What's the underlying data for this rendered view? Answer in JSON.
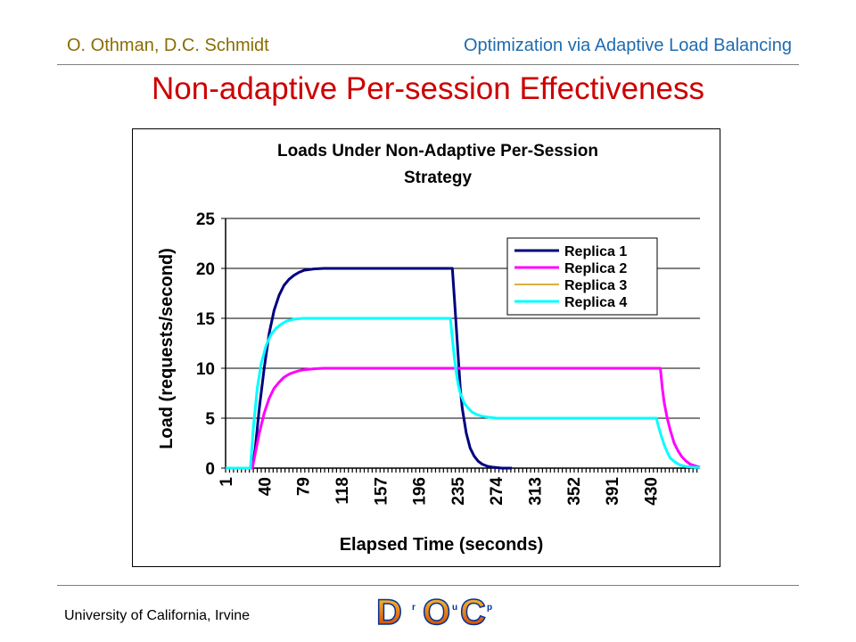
{
  "header": {
    "authors": "O. Othman, D.C. Schmidt",
    "topic": "Optimization via Adaptive Load Balancing"
  },
  "slide_title": "Non-adaptive Per-session Effectiveness",
  "footer": {
    "affiliation": "University of California, Irvine",
    "logo_letters": [
      "D",
      "r",
      "O",
      "u",
      "C",
      "p"
    ]
  },
  "colors": {
    "header_author": "#8a6d00",
    "header_topic": "#1f6bb0",
    "title": "#cc0000",
    "replica1": "#000080",
    "replica2": "#ff00ff",
    "replica3": "#cc9900",
    "replica4": "#00ffff"
  },
  "chart_data": {
    "type": "line",
    "title_lines": [
      "Loads Under Non-Adaptive Per-Session",
      "Strategy"
    ],
    "xlabel": "Elapsed Time (seconds)",
    "ylabel": "Load (requests/second)",
    "ylim": [
      0,
      25
    ],
    "yticks": [
      0,
      5,
      10,
      15,
      20,
      25
    ],
    "xlim": [
      1,
      480
    ],
    "xtick_labels": [
      "1",
      "40",
      "79",
      "118",
      "157",
      "196",
      "235",
      "274",
      "313",
      "352",
      "391",
      "430"
    ],
    "grid": "horizontal",
    "legend_position": "top-right",
    "series": [
      {
        "name": "Replica 1",
        "color": "#000080",
        "x": [
          1,
          28,
          31,
          35,
          40,
          45,
          50,
          55,
          60,
          65,
          70,
          75,
          80,
          90,
          100,
          230,
          232,
          234,
          236,
          238,
          240,
          244,
          248,
          252,
          256,
          260,
          265,
          270,
          280,
          290
        ],
        "y": [
          0,
          0,
          2,
          6,
          10,
          13.5,
          15.8,
          17.3,
          18.3,
          18.9,
          19.3,
          19.6,
          19.8,
          19.95,
          20,
          20,
          17,
          14,
          11,
          8,
          6,
          3.5,
          2,
          1.2,
          0.7,
          0.4,
          0.2,
          0.1,
          0,
          0
        ]
      },
      {
        "name": "Replica 2",
        "color": "#ff00ff",
        "x": [
          1,
          28,
          31,
          35,
          40,
          45,
          50,
          55,
          60,
          65,
          70,
          75,
          80,
          90,
          100,
          440,
          442,
          444,
          447,
          450,
          454,
          458,
          462,
          466,
          470,
          476,
          480
        ],
        "y": [
          0,
          0,
          1.5,
          3.5,
          5.5,
          7,
          8,
          8.6,
          9.1,
          9.4,
          9.6,
          9.75,
          9.85,
          9.95,
          10,
          10,
          8,
          6.5,
          5,
          3.8,
          2.5,
          1.7,
          1.1,
          0.7,
          0.4,
          0.2,
          0.1
        ]
      },
      {
        "name": "Replica 3",
        "color": "#cc9900",
        "x": [],
        "y": []
      },
      {
        "name": "Replica 4",
        "color": "#00ffff",
        "x": [
          1,
          26,
          29,
          33,
          37,
          42,
          47,
          52,
          57,
          62,
          67,
          72,
          80,
          90,
          228,
          230,
          232,
          234,
          236,
          238,
          242,
          246,
          250,
          255,
          260,
          266,
          275,
          285,
          436,
          438,
          441,
          444,
          447,
          450,
          455,
          460,
          466,
          472,
          480
        ],
        "y": [
          0,
          0,
          4,
          8,
          10.5,
          12.3,
          13.4,
          14,
          14.4,
          14.7,
          14.85,
          14.95,
          15,
          15,
          15,
          13,
          11,
          9.5,
          8.3,
          7.5,
          6.5,
          6,
          5.6,
          5.35,
          5.2,
          5.1,
          5,
          5,
          5,
          4.2,
          3.2,
          2.3,
          1.6,
          1,
          0.6,
          0.3,
          0.15,
          0.1,
          0.05
        ]
      }
    ]
  }
}
